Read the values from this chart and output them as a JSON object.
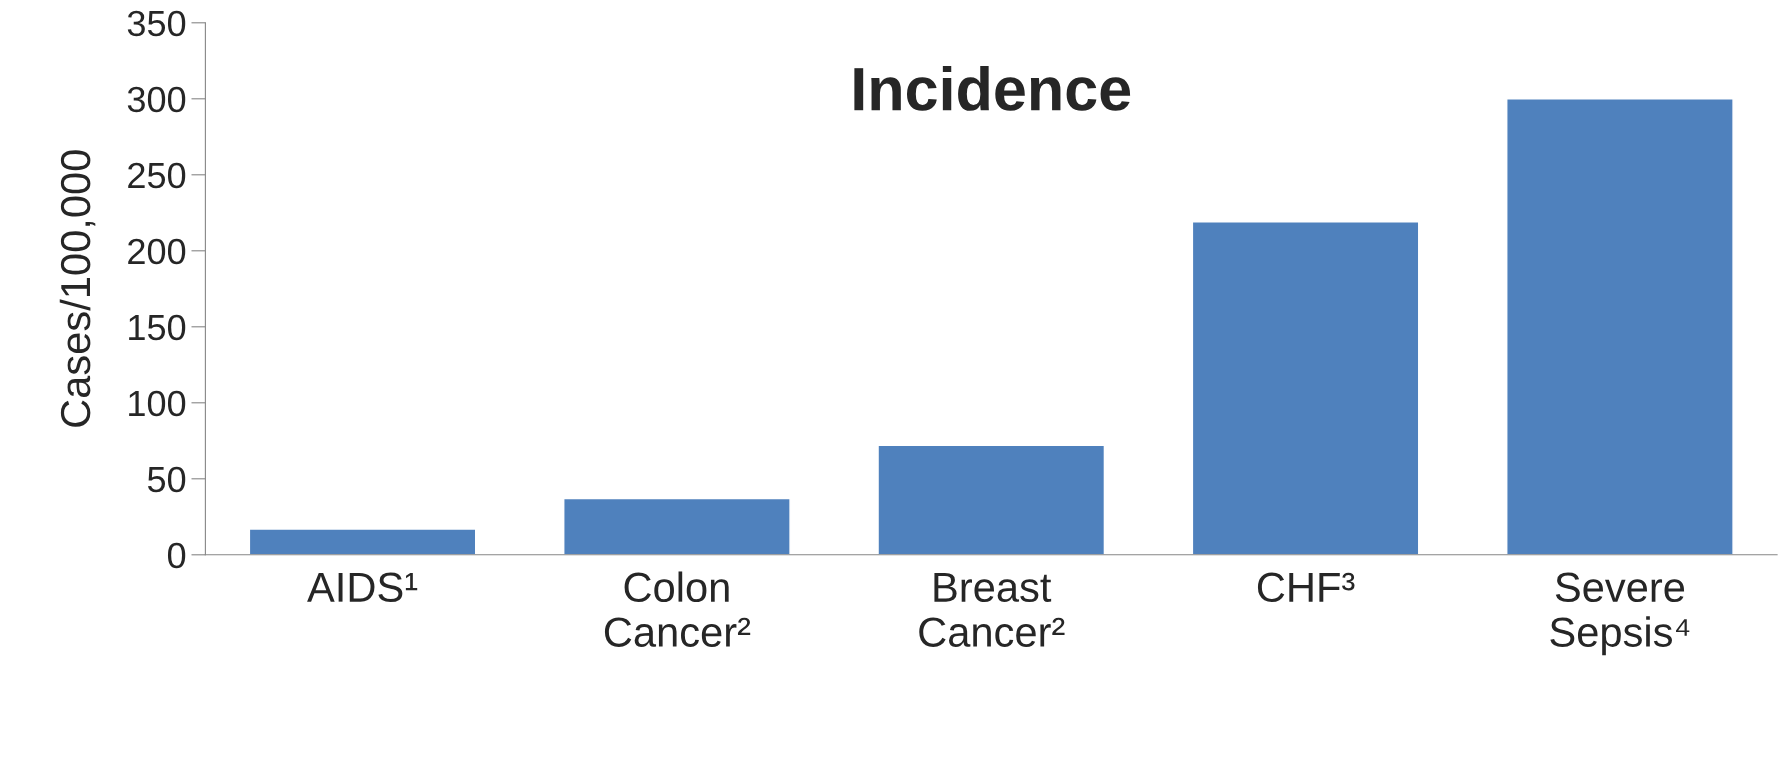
{
  "chart_data": {
    "type": "bar",
    "title": "Incidence",
    "ylabel": "Cases/100,000",
    "categories": [
      "AIDS¹",
      "Colon\nCancer²",
      "Breast\nCancer²",
      "CHF³",
      "Severe\nSepsis⁴"
    ],
    "values": [
      17,
      37,
      72,
      219,
      300
    ],
    "color": "#4f81bd",
    "ylim": [
      0,
      350
    ],
    "yticks": [
      0,
      50,
      100,
      150,
      200,
      250,
      300,
      350
    ],
    "grid": false,
    "legend": false
  }
}
